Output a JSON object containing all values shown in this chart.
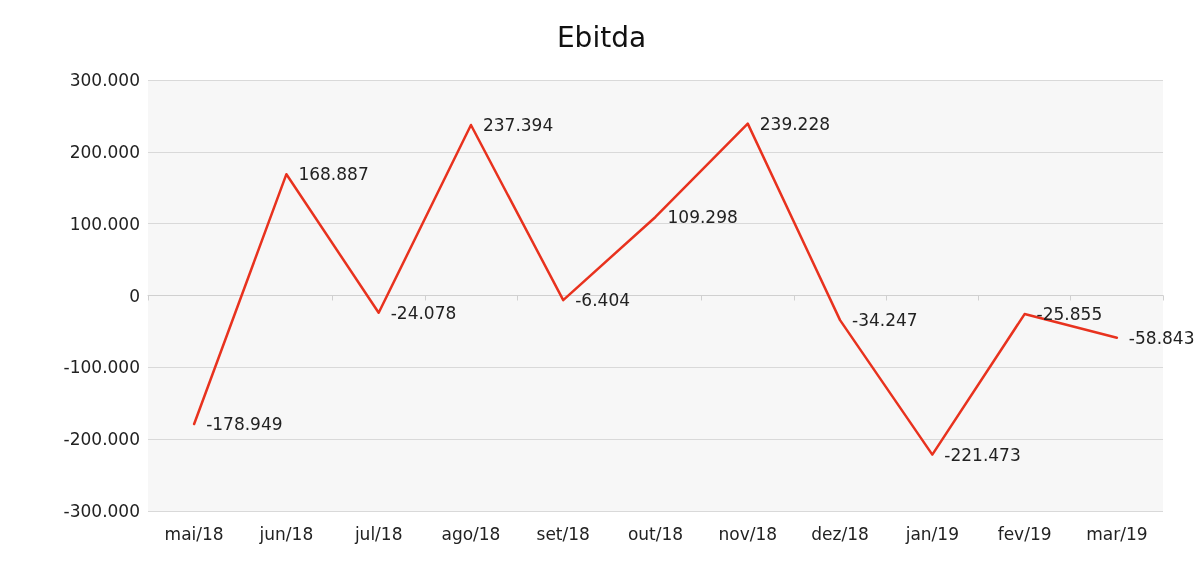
{
  "chart_data": {
    "type": "line",
    "title": "Ebitda",
    "categories": [
      "mai/18",
      "jun/18",
      "jul/18",
      "ago/18",
      "set/18",
      "out/18",
      "nov/18",
      "dez/18",
      "jan/19",
      "fev/19",
      "mar/19"
    ],
    "series": [
      {
        "color": "#e8321e",
        "values": [
          -178949,
          168887,
          -24078,
          237394,
          -6404,
          109298,
          239228,
          -34247,
          -221473,
          -25855,
          -58843
        ],
        "value_labels": [
          "-178.949",
          "168.887",
          "-24.078",
          "237.394",
          "-6.404",
          "109.298",
          "239.228",
          "-34.247",
          "-221.473",
          "-25.855",
          "-58.843"
        ]
      }
    ],
    "ylim": [
      -300000,
      300000
    ],
    "yticks": [
      {
        "value": -300000,
        "label": "-300.000"
      },
      {
        "value": -200000,
        "label": "-200.000"
      },
      {
        "value": -100000,
        "label": "-100.000"
      },
      {
        "value": 0,
        "label": "0"
      },
      {
        "value": 100000,
        "label": "100.000"
      },
      {
        "value": 200000,
        "label": "200.000"
      },
      {
        "value": 300000,
        "label": "300.000"
      }
    ],
    "grid": "y",
    "marker": "none",
    "line_style": "solid"
  }
}
